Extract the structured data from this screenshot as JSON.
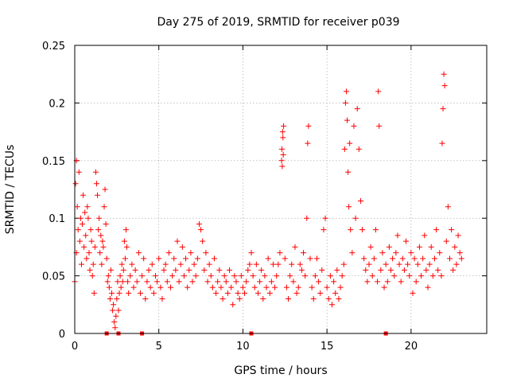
{
  "chart_data": {
    "type": "scatter",
    "title": "Day 275 of 2019, SRMTID for receiver p039",
    "xlabel": "GPS time / hours",
    "ylabel": "SRMTID / TECUs",
    "xlim": [
      0,
      24.5
    ],
    "ylim": [
      0,
      0.25
    ],
    "xticks": [
      0,
      5,
      10,
      15,
      20
    ],
    "xtick_labels": [
      "0",
      "5",
      "10",
      "15",
      "20"
    ],
    "yticks": [
      0,
      0.05,
      0.1,
      0.15,
      0.2,
      0.25
    ],
    "ytick_labels": [
      "0",
      "0.05",
      "0.1",
      "0.15",
      "0.2",
      "0.25"
    ],
    "grid": true,
    "marker": "+",
    "color": "#ff0000",
    "series": [
      {
        "name": "SRMTID",
        "points": [
          [
            0.0,
            0.045
          ],
          [
            0.05,
            0.13
          ],
          [
            0.1,
            0.15
          ],
          [
            0.1,
            0.07
          ],
          [
            0.15,
            0.11
          ],
          [
            0.2,
            0.09
          ],
          [
            0.25,
            0.14
          ],
          [
            0.3,
            0.08
          ],
          [
            0.35,
            0.1
          ],
          [
            0.4,
            0.06
          ],
          [
            0.45,
            0.095
          ],
          [
            0.5,
            0.12
          ],
          [
            0.55,
            0.075
          ],
          [
            0.6,
            0.105
          ],
          [
            0.65,
            0.085
          ],
          [
            0.7,
            0.065
          ],
          [
            0.75,
            0.11
          ],
          [
            0.8,
            0.1
          ],
          [
            0.85,
            0.07
          ],
          [
            0.9,
            0.055
          ],
          [
            0.95,
            0.09
          ],
          [
            1.0,
            0.08
          ],
          [
            1.05,
            0.05
          ],
          [
            1.1,
            0.06
          ],
          [
            1.15,
            0.035
          ],
          [
            1.2,
            0.075
          ],
          [
            1.25,
            0.14
          ],
          [
            1.3,
            0.13
          ],
          [
            1.35,
            0.12
          ],
          [
            1.4,
            0.09
          ],
          [
            1.45,
            0.1
          ],
          [
            1.5,
            0.07
          ],
          [
            1.55,
            0.085
          ],
          [
            1.6,
            0.06
          ],
          [
            1.65,
            0.08
          ],
          [
            1.7,
            0.075
          ],
          [
            1.75,
            0.11
          ],
          [
            1.8,
            0.125
          ],
          [
            1.85,
            0.095
          ],
          [
            1.9,
            0.065
          ],
          [
            1.95,
            0.045
          ],
          [
            2.0,
            0.05
          ],
          [
            2.05,
            0.04
          ],
          [
            2.1,
            0.03
          ],
          [
            2.15,
            0.055
          ],
          [
            2.2,
            0.035
          ],
          [
            2.25,
            0.02
          ],
          [
            2.3,
            0.025
          ],
          [
            2.35,
            0.01
          ],
          [
            2.4,
            0.005
          ],
          [
            2.45,
            0.015
          ],
          [
            2.5,
            0.03
          ],
          [
            2.55,
            0.045
          ],
          [
            2.6,
            0.02
          ],
          [
            2.65,
            0.035
          ],
          [
            2.7,
            0.05
          ],
          [
            2.75,
            0.04
          ],
          [
            2.8,
            0.06
          ],
          [
            2.85,
            0.045
          ],
          [
            2.9,
            0.055
          ],
          [
            2.95,
            0.08
          ],
          [
            3.0,
            0.065
          ],
          [
            3.05,
            0.09
          ],
          [
            3.1,
            0.075
          ],
          [
            3.15,
            0.045
          ],
          [
            3.2,
            0.035
          ],
          [
            3.3,
            0.05
          ],
          [
            3.4,
            0.06
          ],
          [
            3.5,
            0.04
          ],
          [
            3.6,
            0.055
          ],
          [
            3.7,
            0.045
          ],
          [
            3.8,
            0.07
          ],
          [
            3.9,
            0.035
          ],
          [
            4.0,
            0.05
          ],
          [
            4.1,
            0.065
          ],
          [
            4.2,
            0.03
          ],
          [
            4.3,
            0.045
          ],
          [
            4.4,
            0.055
          ],
          [
            4.5,
            0.04
          ],
          [
            4.6,
            0.06
          ],
          [
            4.7,
            0.035
          ],
          [
            4.8,
            0.05
          ],
          [
            4.9,
            0.045
          ],
          [
            5.0,
            0.065
          ],
          [
            5.1,
            0.04
          ],
          [
            5.2,
            0.03
          ],
          [
            5.3,
            0.055
          ],
          [
            5.4,
            0.06
          ],
          [
            5.5,
            0.045
          ],
          [
            5.6,
            0.07
          ],
          [
            5.7,
            0.04
          ],
          [
            5.8,
            0.05
          ],
          [
            5.9,
            0.065
          ],
          [
            6.0,
            0.055
          ],
          [
            6.1,
            0.08
          ],
          [
            6.2,
            0.045
          ],
          [
            6.3,
            0.06
          ],
          [
            6.4,
            0.075
          ],
          [
            6.5,
            0.05
          ],
          [
            6.6,
            0.065
          ],
          [
            6.7,
            0.04
          ],
          [
            6.8,
            0.055
          ],
          [
            6.9,
            0.07
          ],
          [
            7.0,
            0.045
          ],
          [
            7.1,
            0.06
          ],
          [
            7.2,
            0.05
          ],
          [
            7.3,
            0.065
          ],
          [
            7.4,
            0.095
          ],
          [
            7.5,
            0.09
          ],
          [
            7.6,
            0.08
          ],
          [
            7.7,
            0.055
          ],
          [
            7.8,
            0.07
          ],
          [
            7.9,
            0.045
          ],
          [
            8.0,
            0.06
          ],
          [
            8.1,
            0.05
          ],
          [
            8.2,
            0.04
          ],
          [
            8.3,
            0.065
          ],
          [
            8.4,
            0.035
          ],
          [
            8.5,
            0.045
          ],
          [
            8.6,
            0.055
          ],
          [
            8.7,
            0.04
          ],
          [
            8.8,
            0.03
          ],
          [
            8.9,
            0.05
          ],
          [
            9.0,
            0.045
          ],
          [
            9.1,
            0.035
          ],
          [
            9.2,
            0.055
          ],
          [
            9.3,
            0.04
          ],
          [
            9.4,
            0.025
          ],
          [
            9.5,
            0.05
          ],
          [
            9.6,
            0.045
          ],
          [
            9.7,
            0.035
          ],
          [
            9.8,
            0.03
          ],
          [
            9.9,
            0.05
          ],
          [
            10.0,
            0.04
          ],
          [
            10.1,
            0.035
          ],
          [
            10.2,
            0.045
          ],
          [
            10.3,
            0.055
          ],
          [
            10.4,
            0.06
          ],
          [
            10.5,
            0.07
          ],
          [
            10.6,
            0.05
          ],
          [
            10.7,
            0.04
          ],
          [
            10.8,
            0.06
          ],
          [
            10.9,
            0.035
          ],
          [
            11.0,
            0.045
          ],
          [
            11.1,
            0.055
          ],
          [
            11.2,
            0.03
          ],
          [
            11.3,
            0.05
          ],
          [
            11.4,
            0.04
          ],
          [
            11.5,
            0.065
          ],
          [
            11.6,
            0.035
          ],
          [
            11.7,
            0.045
          ],
          [
            11.8,
            0.06
          ],
          [
            11.9,
            0.04
          ],
          [
            12.0,
            0.05
          ],
          [
            12.1,
            0.06
          ],
          [
            12.2,
            0.07
          ],
          [
            12.3,
            0.15
          ],
          [
            12.32,
            0.16
          ],
          [
            12.34,
            0.145
          ],
          [
            12.36,
            0.175
          ],
          [
            12.38,
            0.17
          ],
          [
            12.4,
            0.155
          ],
          [
            12.42,
            0.18
          ],
          [
            12.5,
            0.065
          ],
          [
            12.6,
            0.04
          ],
          [
            12.7,
            0.03
          ],
          [
            12.8,
            0.05
          ],
          [
            12.9,
            0.06
          ],
          [
            13.0,
            0.045
          ],
          [
            13.1,
            0.075
          ],
          [
            13.2,
            0.035
          ],
          [
            13.3,
            0.04
          ],
          [
            13.4,
            0.06
          ],
          [
            13.5,
            0.055
          ],
          [
            13.6,
            0.07
          ],
          [
            13.7,
            0.05
          ],
          [
            13.8,
            0.1
          ],
          [
            13.85,
            0.165
          ],
          [
            13.9,
            0.18
          ],
          [
            14.0,
            0.065
          ],
          [
            14.1,
            0.04
          ],
          [
            14.2,
            0.03
          ],
          [
            14.3,
            0.05
          ],
          [
            14.4,
            0.065
          ],
          [
            14.5,
            0.045
          ],
          [
            14.6,
            0.035
          ],
          [
            14.7,
            0.055
          ],
          [
            14.8,
            0.09
          ],
          [
            14.9,
            0.1
          ],
          [
            15.0,
            0.04
          ],
          [
            15.1,
            0.03
          ],
          [
            15.2,
            0.05
          ],
          [
            15.3,
            0.025
          ],
          [
            15.4,
            0.045
          ],
          [
            15.5,
            0.035
          ],
          [
            15.6,
            0.055
          ],
          [
            15.7,
            0.03
          ],
          [
            15.8,
            0.04
          ],
          [
            15.9,
            0.05
          ],
          [
            16.0,
            0.06
          ],
          [
            16.05,
            0.16
          ],
          [
            16.1,
            0.2
          ],
          [
            16.15,
            0.21
          ],
          [
            16.2,
            0.185
          ],
          [
            16.25,
            0.14
          ],
          [
            16.3,
            0.11
          ],
          [
            16.35,
            0.165
          ],
          [
            16.4,
            0.09
          ],
          [
            16.5,
            0.07
          ],
          [
            16.6,
            0.18
          ],
          [
            16.7,
            0.1
          ],
          [
            16.8,
            0.195
          ],
          [
            16.9,
            0.16
          ],
          [
            17.0,
            0.115
          ],
          [
            17.1,
            0.09
          ],
          [
            17.2,
            0.065
          ],
          [
            17.3,
            0.055
          ],
          [
            17.4,
            0.045
          ],
          [
            17.5,
            0.06
          ],
          [
            17.6,
            0.075
          ],
          [
            17.7,
            0.05
          ],
          [
            17.8,
            0.065
          ],
          [
            17.9,
            0.09
          ],
          [
            18.0,
            0.045
          ],
          [
            18.05,
            0.21
          ],
          [
            18.1,
            0.18
          ],
          [
            18.2,
            0.055
          ],
          [
            18.3,
            0.07
          ],
          [
            18.4,
            0.04
          ],
          [
            18.5,
            0.06
          ],
          [
            18.6,
            0.045
          ],
          [
            18.7,
            0.075
          ],
          [
            18.8,
            0.055
          ],
          [
            18.9,
            0.065
          ],
          [
            19.0,
            0.05
          ],
          [
            19.1,
            0.07
          ],
          [
            19.2,
            0.085
          ],
          [
            19.3,
            0.06
          ],
          [
            19.4,
            0.045
          ],
          [
            19.5,
            0.065
          ],
          [
            19.6,
            0.055
          ],
          [
            19.7,
            0.08
          ],
          [
            19.8,
            0.06
          ],
          [
            19.9,
            0.05
          ],
          [
            20.0,
            0.07
          ],
          [
            20.1,
            0.035
          ],
          [
            20.2,
            0.065
          ],
          [
            20.3,
            0.045
          ],
          [
            20.4,
            0.06
          ],
          [
            20.5,
            0.075
          ],
          [
            20.6,
            0.05
          ],
          [
            20.7,
            0.065
          ],
          [
            20.8,
            0.085
          ],
          [
            20.9,
            0.055
          ],
          [
            21.0,
            0.04
          ],
          [
            21.1,
            0.06
          ],
          [
            21.2,
            0.075
          ],
          [
            21.3,
            0.05
          ],
          [
            21.4,
            0.065
          ],
          [
            21.5,
            0.09
          ],
          [
            21.6,
            0.055
          ],
          [
            21.7,
            0.07
          ],
          [
            21.8,
            0.05
          ],
          [
            21.85,
            0.165
          ],
          [
            21.9,
            0.195
          ],
          [
            21.95,
            0.225
          ],
          [
            22.0,
            0.215
          ],
          [
            22.1,
            0.08
          ],
          [
            22.2,
            0.11
          ],
          [
            22.3,
            0.065
          ],
          [
            22.4,
            0.09
          ],
          [
            22.5,
            0.055
          ],
          [
            22.6,
            0.075
          ],
          [
            22.7,
            0.06
          ],
          [
            22.8,
            0.085
          ],
          [
            22.9,
            0.07
          ],
          [
            23.0,
            0.065
          ]
        ]
      }
    ],
    "zero_markers": [
      1.9,
      2.6,
      4.0,
      10.5,
      18.5
    ]
  }
}
